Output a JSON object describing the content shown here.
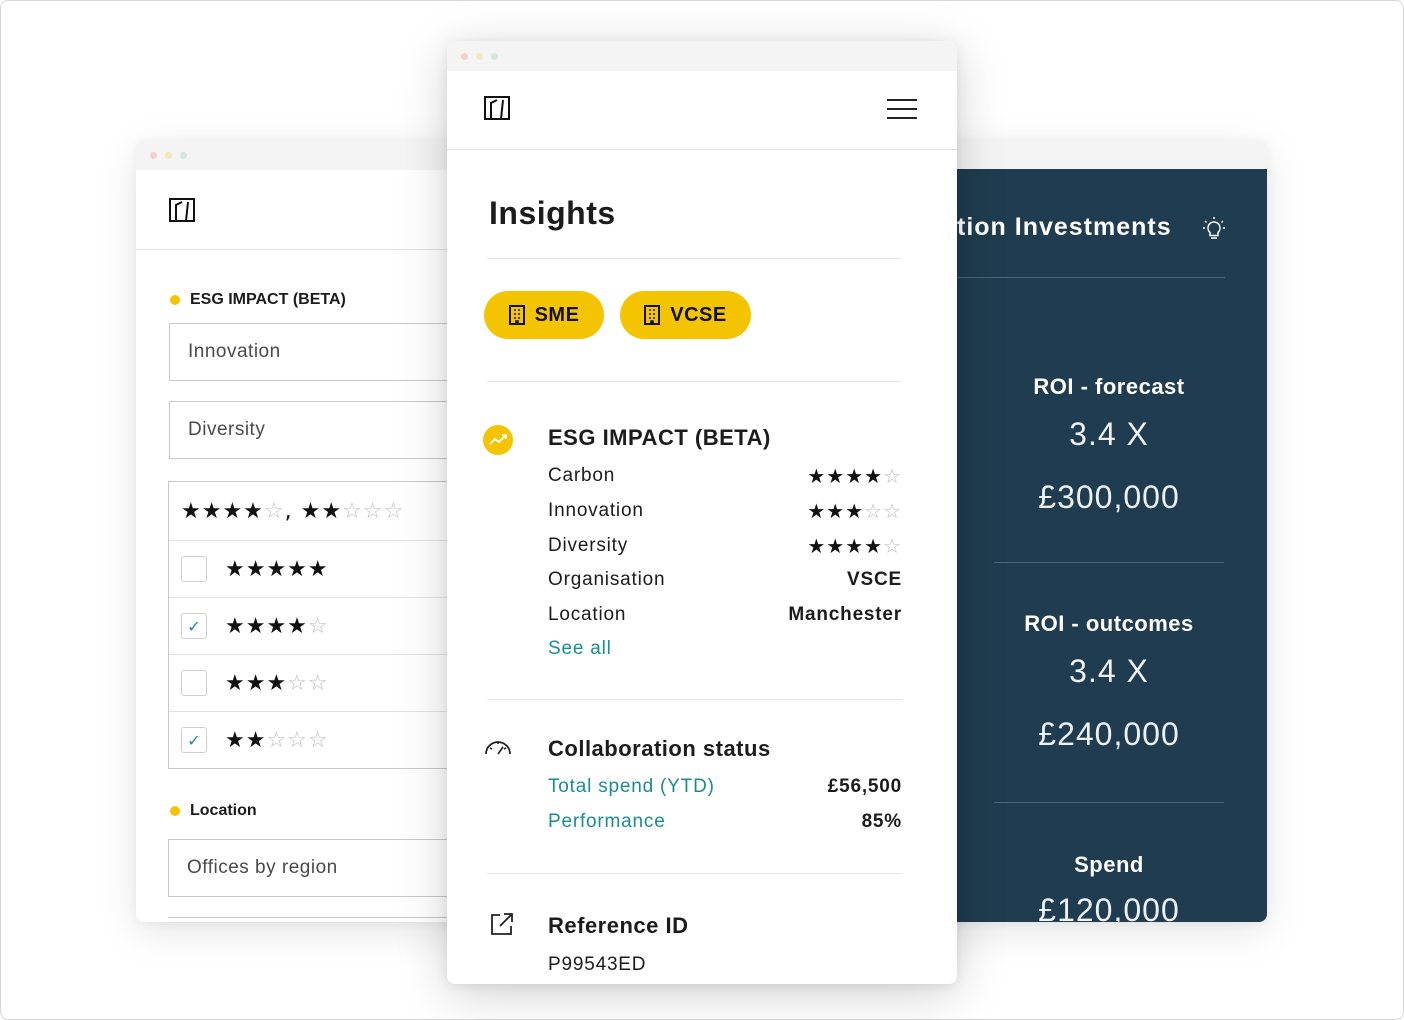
{
  "colors": {
    "accent_yellow": "#f5c400",
    "teal_link": "#1a8c94",
    "dark_panel": "#1f3c50"
  },
  "left_panel": {
    "esg_heading": "ESG IMPACT (BETA)",
    "field_innovation": "Innovation",
    "field_diversity": "Diversity",
    "rating_summary_a": "★★★★",
    "rating_summary_a_empty": "☆",
    "rating_summary_sep": ", ",
    "rating_summary_b": "★★",
    "rating_summary_b_empty": "☆☆☆",
    "options": [
      {
        "stars": "★★★★★",
        "empty": "",
        "checked": false
      },
      {
        "stars": "★★★★",
        "empty": "☆",
        "checked": true
      },
      {
        "stars": "★★★",
        "empty": "☆☆",
        "checked": false
      },
      {
        "stars": "★★",
        "empty": "☆☆☆",
        "checked": true
      }
    ],
    "check_mark": "✓",
    "location_heading": "Location",
    "location_field": "Offices by region"
  },
  "right_panel": {
    "title": "tion Investments",
    "icon": "lightbulb-icon",
    "roi_forecast": {
      "label": "ROI - forecast",
      "multiple": "3.4 X",
      "amount": "£300,000"
    },
    "roi_outcomes": {
      "label": "ROI - outcomes",
      "multiple": "3.4 X",
      "amount": "£240,000"
    },
    "spend": {
      "label": "Spend",
      "amount": "£120,000"
    }
  },
  "main": {
    "title": "Insights",
    "tags": [
      {
        "label": "SME",
        "icon": "building-icon"
      },
      {
        "label": "VCSE",
        "icon": "building-icon"
      }
    ],
    "esg": {
      "title": "ESG IMPACT (BETA)",
      "rows": [
        {
          "label": "Carbon",
          "stars": "★★★★",
          "empty": "☆"
        },
        {
          "label": "Innovation",
          "stars": "★★★",
          "empty": "☆☆"
        },
        {
          "label": "Diversity",
          "stars": "★★★★",
          "empty": "☆"
        }
      ],
      "organisation_label": "Organisation",
      "organisation_value": "VSCE",
      "location_label": "Location",
      "location_value": "Manchester",
      "see_all": "See all"
    },
    "collaboration": {
      "title": "Collaboration status",
      "total_spend_label": "Total spend (YTD)",
      "total_spend_value": "£56,500",
      "performance_label": "Performance",
      "performance_value": "85%"
    },
    "reference": {
      "title": "Reference ID",
      "value": "P99543ED"
    }
  }
}
